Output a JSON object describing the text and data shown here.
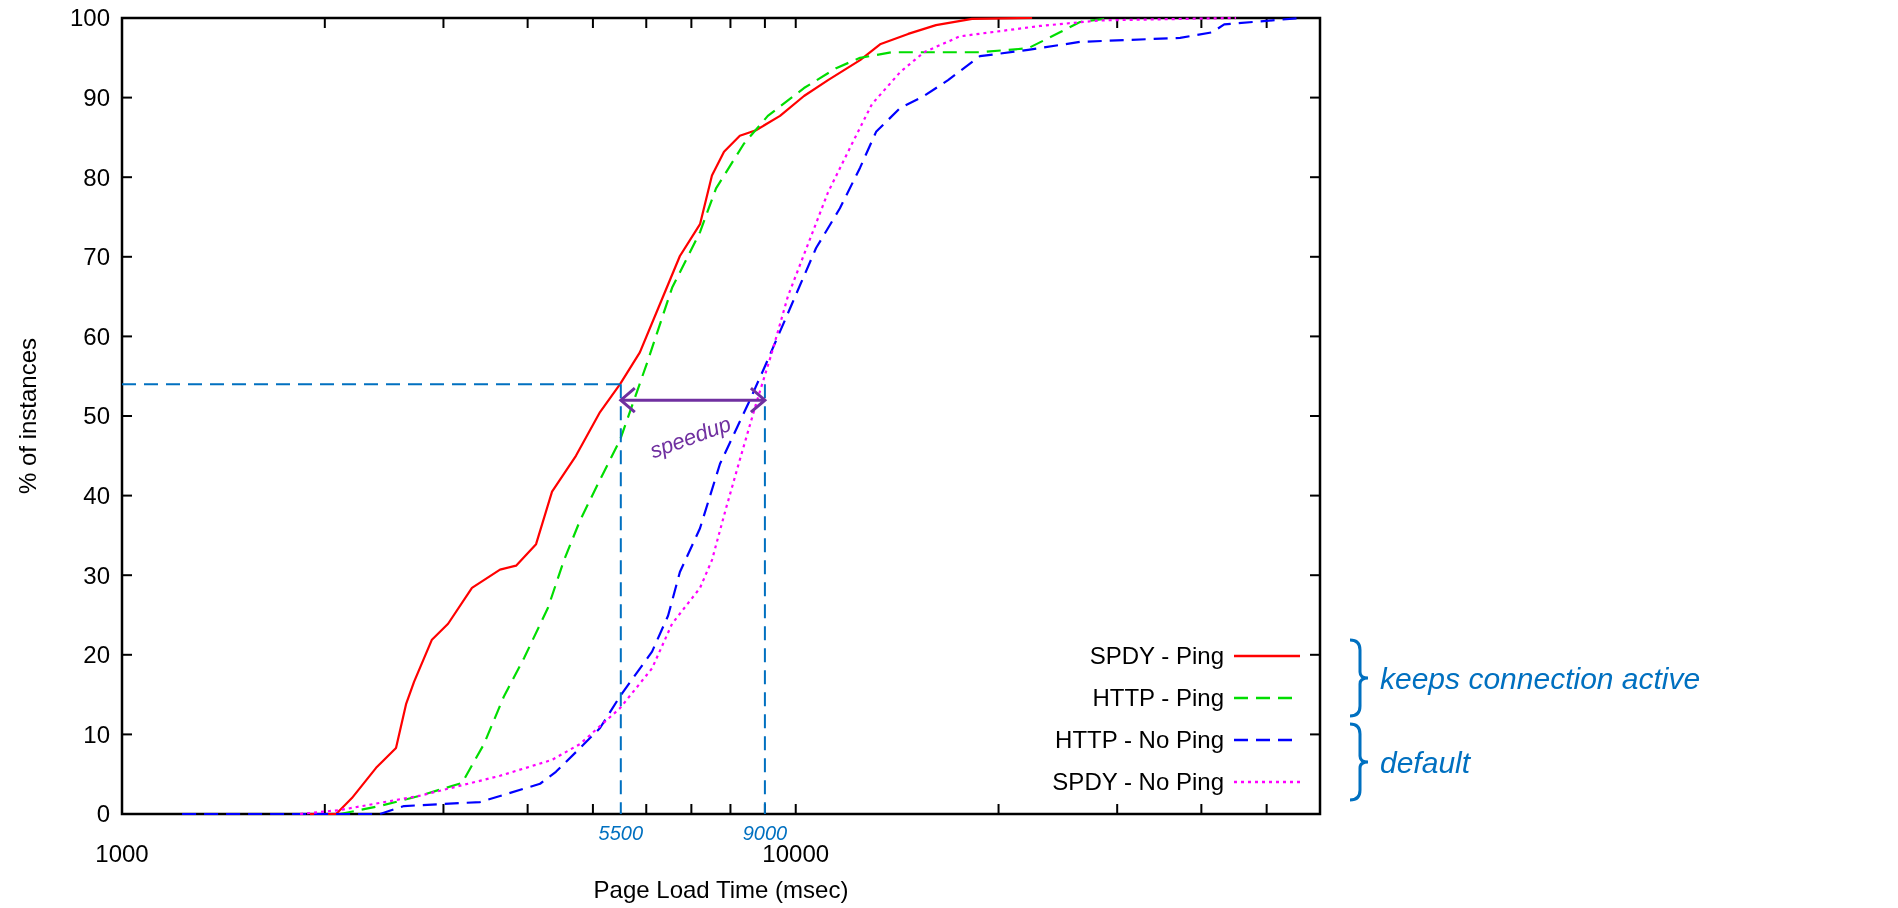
{
  "chart_data": {
    "type": "line",
    "xlabel": "Page Load Time (msec)",
    "ylabel": "% of instances",
    "log": "x",
    "xlim": [
      1000,
      60000
    ],
    "ylim": [
      0,
      100
    ],
    "xticks": [
      1000,
      {
        "value": 2000,
        "label": null
      },
      {
        "value": 3000,
        "label": null
      },
      {
        "value": 4000,
        "label": null
      },
      {
        "value": 5000,
        "label": null
      },
      {
        "value": 6000,
        "label": null
      },
      {
        "value": 7000,
        "label": null
      },
      {
        "value": 8000,
        "label": null
      },
      {
        "value": 9000,
        "label": null
      },
      10000,
      {
        "value": 20000,
        "label": null
      },
      {
        "value": 30000,
        "label": null
      },
      {
        "value": 40000,
        "label": null
      },
      {
        "value": 50000,
        "label": null
      }
    ],
    "yticks": [
      0,
      10,
      20,
      30,
      40,
      50,
      60,
      70,
      80,
      90,
      100
    ],
    "grid": false,
    "legend": "bottom right",
    "marker": "none",
    "series": [
      {
        "name": "SPDY - Ping",
        "color": "#ff0000",
        "line_style": "solid",
        "x": [
          1900,
          2079,
          2194,
          2383,
          2551,
          2640,
          2713,
          2884,
          3048,
          3307,
          3640,
          3845,
          4117,
          4348,
          4718,
          5123,
          5486,
          5870,
          6290,
          6731,
          7210,
          7510,
          7826,
          8261,
          8730,
          9477,
          10287,
          11167,
          12460,
          13340,
          14685,
          16150,
          18270,
          22430
        ],
        "values": [
          0,
          0,
          2.0,
          5.8,
          8.3,
          13.8,
          16.6,
          21.9,
          23.9,
          28.4,
          30.7,
          31.2,
          33.9,
          40.5,
          45,
          50.5,
          54.0,
          58.0,
          64.1,
          70.1,
          74.1,
          80.2,
          83.2,
          85.2,
          85.9,
          87.7,
          90.2,
          92.2,
          94.7,
          96.7,
          98.0,
          99.1,
          99.9,
          100
        ]
      },
      {
        "name": "HTTP - Ping",
        "color": "#00dd00",
        "line_style": "dashed",
        "x": [
          2107,
          2414,
          2769,
          3197,
          3446,
          3690,
          3952,
          4288,
          4530,
          4786,
          5123,
          5486,
          6035,
          6553,
          7210,
          7616,
          8376,
          9090,
          10287,
          11480,
          12460,
          13900,
          18770,
          22130,
          24670,
          26420,
          29480
        ],
        "values": [
          0,
          1.0,
          2.3,
          3.9,
          8.8,
          14.8,
          19.6,
          25.9,
          31.9,
          36.9,
          42.0,
          47.0,
          57.0,
          66.1,
          73.1,
          78.6,
          84.2,
          87.7,
          91.2,
          93.7,
          95.0,
          95.7,
          95.7,
          96.2,
          98.2,
          99.5,
          100
        ]
      },
      {
        "name": "HTTP - No Ping",
        "color": "#0000ff",
        "line_style": "dashed",
        "x": [
          1228,
          2414,
          2622,
          3400,
          4174,
          4406,
          4786,
          5123,
          5486,
          6120,
          6464,
          6731,
          7210,
          7720,
          8497,
          8975,
          9874,
          10720,
          11630,
          12460,
          13160,
          14290,
          15500,
          16830,
          18770,
          22130,
          26420,
          37200,
          41500,
          43250,
          56060
        ],
        "values": [
          0,
          0,
          1.0,
          1.5,
          3.8,
          5.3,
          8.3,
          10.8,
          14.8,
          20.4,
          24.9,
          30.4,
          35.9,
          44.0,
          51.5,
          56.0,
          64.1,
          71.1,
          76.1,
          81.2,
          85.7,
          88.7,
          90.2,
          92.2,
          95.2,
          96.0,
          97.0,
          97.5,
          98.2,
          99.2,
          100
        ]
      },
      {
        "name": "SPDY - No Ping",
        "color": "#ff00ff",
        "line_style": "dotted",
        "x": [
          1838,
          2107,
          2769,
          3640,
          4348,
          4786,
          5486,
          6120,
          6553,
          7210,
          7510,
          7880,
          8261,
          8730,
          9220,
          9741,
          10430,
          11167,
          12120,
          12980,
          14290,
          15500,
          17530,
          23050,
          28300,
          45040
        ],
        "values": [
          0,
          0.5,
          2.3,
          4.8,
          6.8,
          8.8,
          13.3,
          18.3,
          23.9,
          28.4,
          31.9,
          38.4,
          44.5,
          51.5,
          58.0,
          65.1,
          71.6,
          78.1,
          84.2,
          89.2,
          93.2,
          95.7,
          97.7,
          99.0,
          99.7,
          100
        ]
      }
    ],
    "ref_lines": [
      {
        "axis": "y",
        "value": 54,
        "label": null,
        "color": "#0070c0",
        "line_style": "dashed"
      },
      {
        "axis": "x",
        "value": 5500,
        "label": "5500",
        "color": "#0070c0",
        "line_style": "dashed"
      },
      {
        "axis": "x",
        "value": 9000,
        "label": "9000",
        "color": "#0070c0",
        "line_style": "dashed"
      }
    ],
    "annotations": [
      "speedup",
      "keeps connection active",
      "default"
    ]
  }
}
